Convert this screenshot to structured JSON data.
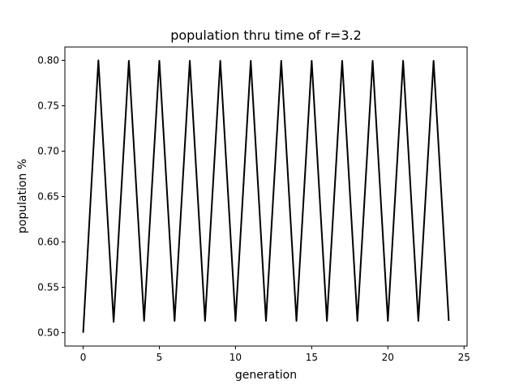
{
  "chart_data": {
    "type": "line",
    "title": "population thru time of r=3.2",
    "xlabel": "generation",
    "ylabel": "population %",
    "xlim": [
      -1.2,
      25.2
    ],
    "ylim": [
      0.4853,
      0.8147
    ],
    "x_ticks": [
      0,
      5,
      10,
      15,
      20,
      25
    ],
    "y_ticks": [
      0.5,
      0.55,
      0.6,
      0.65,
      0.7,
      0.75,
      0.8
    ],
    "x_tick_labels": [
      "0",
      "5",
      "10",
      "15",
      "20",
      "25"
    ],
    "y_tick_labels": [
      "0.50",
      "0.55",
      "0.60",
      "0.65",
      "0.70",
      "0.75",
      "0.80"
    ],
    "grid": false,
    "color": "#000000",
    "series": [
      {
        "x": [
          0,
          1,
          2,
          3,
          4,
          5,
          6,
          7,
          8,
          9,
          10,
          11,
          12,
          13,
          14,
          15,
          16,
          17,
          18,
          19,
          20,
          21,
          22,
          23,
          24
        ],
        "y": [
          0.5,
          0.8,
          0.512,
          0.7995,
          0.513,
          0.7995,
          0.513,
          0.7995,
          0.513,
          0.7995,
          0.513,
          0.7995,
          0.513,
          0.7995,
          0.513,
          0.7995,
          0.513,
          0.7995,
          0.513,
          0.7995,
          0.513,
          0.7995,
          0.513,
          0.7995,
          0.513
        ]
      }
    ]
  }
}
